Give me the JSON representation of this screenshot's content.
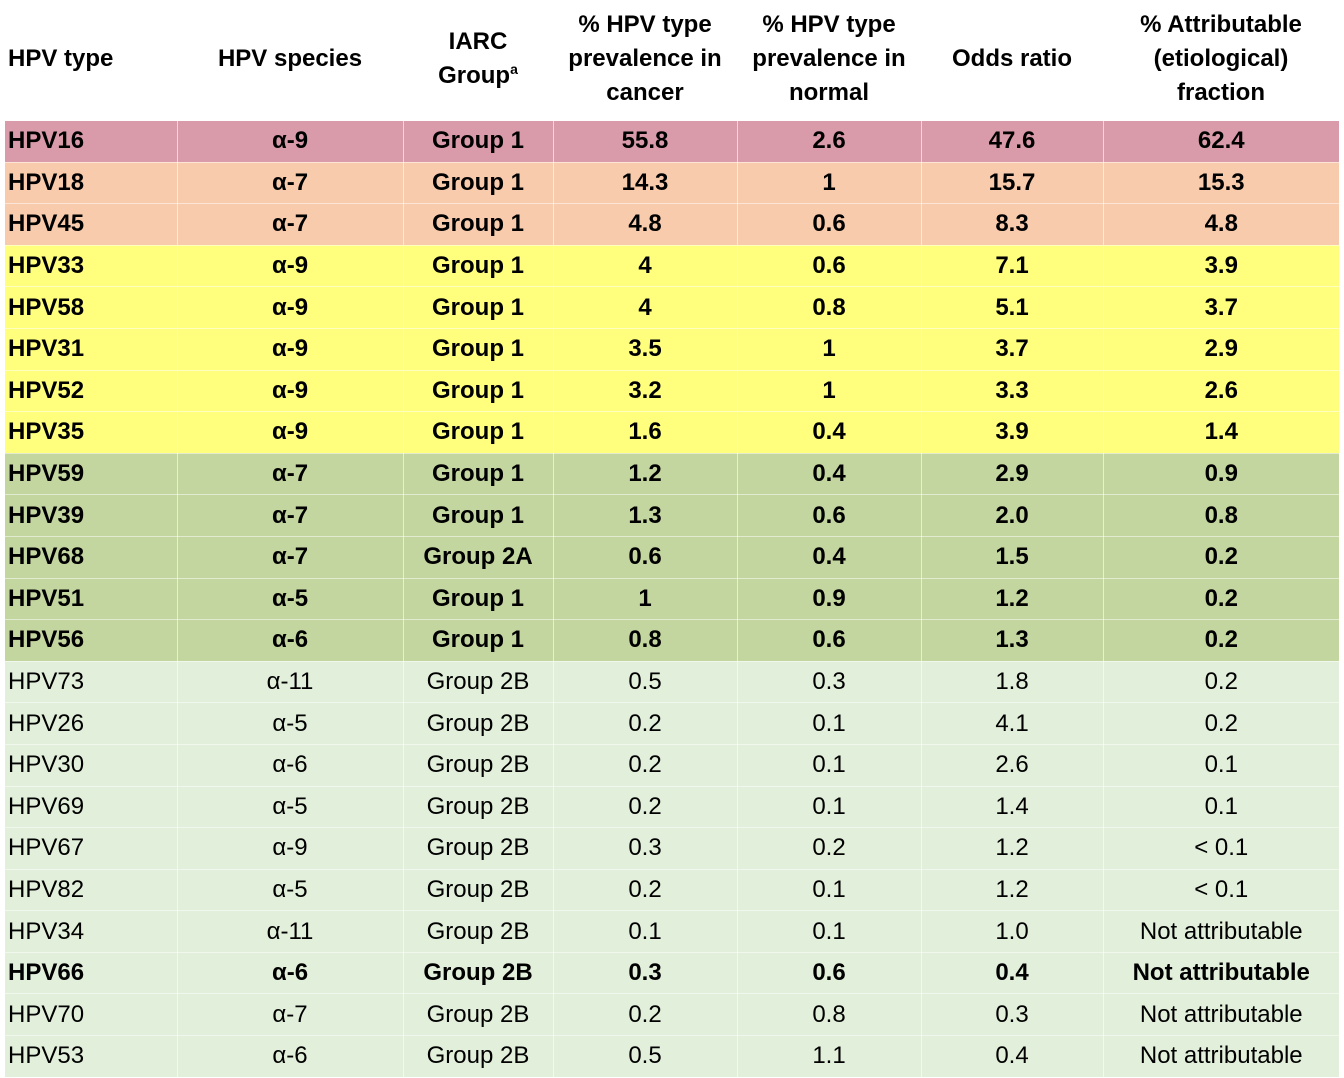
{
  "colors": {
    "group_hpv16": "#d99ba9",
    "group_hpv18_45": "#f8cbac",
    "group_yellow": "#ffff7d",
    "group_olive": "#c4d69f",
    "group_light": "#e2efda"
  },
  "header": {
    "hpv_type": "HPV type",
    "hpv_species": "HPV species",
    "iarc_line1": "IARC",
    "iarc_line2": "Group",
    "iarc_sup": "a",
    "prev_cancer_line1": "% HPV type",
    "prev_cancer_line2": "prevalence in",
    "prev_cancer_line3": "cancer",
    "prev_normal_line1": "% HPV type",
    "prev_normal_line2": "prevalence in",
    "prev_normal_line3": "normal",
    "odds_ratio": "Odds ratio",
    "attr_line1": "% Attributable",
    "attr_line2": "(etiological)",
    "attr_line3": "fraction"
  },
  "rows": [
    {
      "type": "HPV16",
      "species": "α-9",
      "iarc": "Group 1",
      "cancer": "55.8",
      "normal": "2.6",
      "odds": "47.6",
      "attr": "62.4",
      "bold": true,
      "color": "#d99ba9"
    },
    {
      "type": "HPV18",
      "species": "α-7",
      "iarc": "Group 1",
      "cancer": "14.3",
      "normal": "1",
      "odds": "15.7",
      "attr": "15.3",
      "bold": true,
      "color": "#f8cbac"
    },
    {
      "type": "HPV45",
      "species": "α-7",
      "iarc": "Group 1",
      "cancer": "4.8",
      "normal": "0.6",
      "odds": "8.3",
      "attr": "4.8",
      "bold": true,
      "color": "#f8cbac"
    },
    {
      "type": "HPV33",
      "species": "α-9",
      "iarc": "Group 1",
      "cancer": "4",
      "normal": "0.6",
      "odds": "7.1",
      "attr": "3.9",
      "bold": true,
      "color": "#ffff7d"
    },
    {
      "type": "HPV58",
      "species": "α-9",
      "iarc": "Group 1",
      "cancer": "4",
      "normal": "0.8",
      "odds": "5.1",
      "attr": "3.7",
      "bold": true,
      "color": "#ffff7d"
    },
    {
      "type": "HPV31",
      "species": "α-9",
      "iarc": "Group 1",
      "cancer": "3.5",
      "normal": "1",
      "odds": "3.7",
      "attr": "2.9",
      "bold": true,
      "color": "#ffff7d"
    },
    {
      "type": "HPV52",
      "species": "α-9",
      "iarc": "Group 1",
      "cancer": "3.2",
      "normal": "1",
      "odds": "3.3",
      "attr": "2.6",
      "bold": true,
      "color": "#ffff7d"
    },
    {
      "type": "HPV35",
      "species": "α-9",
      "iarc": "Group 1",
      "cancer": "1.6",
      "normal": "0.4",
      "odds": "3.9",
      "attr": "1.4",
      "bold": true,
      "color": "#ffff7d"
    },
    {
      "type": "HPV59",
      "species": "α-7",
      "iarc": "Group 1",
      "cancer": "1.2",
      "normal": "0.4",
      "odds": "2.9",
      "attr": "0.9",
      "bold": true,
      "color": "#c4d69f"
    },
    {
      "type": "HPV39",
      "species": "α-7",
      "iarc": "Group 1",
      "cancer": "1.3",
      "normal": "0.6",
      "odds": "2.0",
      "attr": "0.8",
      "bold": true,
      "color": "#c4d69f"
    },
    {
      "type": "HPV68",
      "species": "α-7",
      "iarc": "Group 2A",
      "cancer": "0.6",
      "normal": "0.4",
      "odds": "1.5",
      "attr": "0.2",
      "bold": true,
      "color": "#c4d69f"
    },
    {
      "type": "HPV51",
      "species": "α-5",
      "iarc": "Group 1",
      "cancer": "1",
      "normal": "0.9",
      "odds": "1.2",
      "attr": "0.2",
      "bold": true,
      "color": "#c4d69f"
    },
    {
      "type": "HPV56",
      "species": "α-6",
      "iarc": "Group 1",
      "cancer": "0.8",
      "normal": "0.6",
      "odds": "1.3",
      "attr": "0.2",
      "bold": true,
      "color": "#c4d69f"
    },
    {
      "type": "HPV73",
      "species": "α-11",
      "iarc": "Group 2B",
      "cancer": "0.5",
      "normal": "0.3",
      "odds": "1.8",
      "attr": "0.2",
      "bold": false,
      "color": "#e2efda"
    },
    {
      "type": "HPV26",
      "species": "α-5",
      "iarc": "Group 2B",
      "cancer": "0.2",
      "normal": "0.1",
      "odds": "4.1",
      "attr": "0.2",
      "bold": false,
      "color": "#e2efda"
    },
    {
      "type": "HPV30",
      "species": "α-6",
      "iarc": "Group 2B",
      "cancer": "0.2",
      "normal": "0.1",
      "odds": "2.6",
      "attr": "0.1",
      "bold": false,
      "color": "#e2efda"
    },
    {
      "type": "HPV69",
      "species": "α-5",
      "iarc": "Group 2B",
      "cancer": "0.2",
      "normal": "0.1",
      "odds": "1.4",
      "attr": "0.1",
      "bold": false,
      "color": "#e2efda"
    },
    {
      "type": "HPV67",
      "species": "α-9",
      "iarc": "Group 2B",
      "cancer": "0.3",
      "normal": "0.2",
      "odds": "1.2",
      "attr": "< 0.1",
      "bold": false,
      "color": "#e2efda"
    },
    {
      "type": "HPV82",
      "species": "α-5",
      "iarc": "Group 2B",
      "cancer": "0.2",
      "normal": "0.1",
      "odds": "1.2",
      "attr": "< 0.1",
      "bold": false,
      "color": "#e2efda"
    },
    {
      "type": "HPV34",
      "species": "α-11",
      "iarc": "Group 2B",
      "cancer": "0.1",
      "normal": "0.1",
      "odds": "1.0",
      "attr": "Not attributable",
      "bold": false,
      "color": "#e2efda"
    },
    {
      "type": "HPV66",
      "species": "α-6",
      "iarc": "Group 2B",
      "cancer": "0.3",
      "normal": "0.6",
      "odds": "0.4",
      "attr": "Not attributable",
      "bold": true,
      "color": "#e2efda"
    },
    {
      "type": "HPV70",
      "species": "α-7",
      "iarc": "Group 2B",
      "cancer": "0.2",
      "normal": "0.8",
      "odds": "0.3",
      "attr": "Not attributable",
      "bold": false,
      "color": "#e2efda"
    },
    {
      "type": "HPV53",
      "species": "α-6",
      "iarc": "Group 2B",
      "cancer": "0.5",
      "normal": "1.1",
      "odds": "0.4",
      "attr": "Not attributable",
      "bold": false,
      "color": "#e2efda"
    }
  ]
}
